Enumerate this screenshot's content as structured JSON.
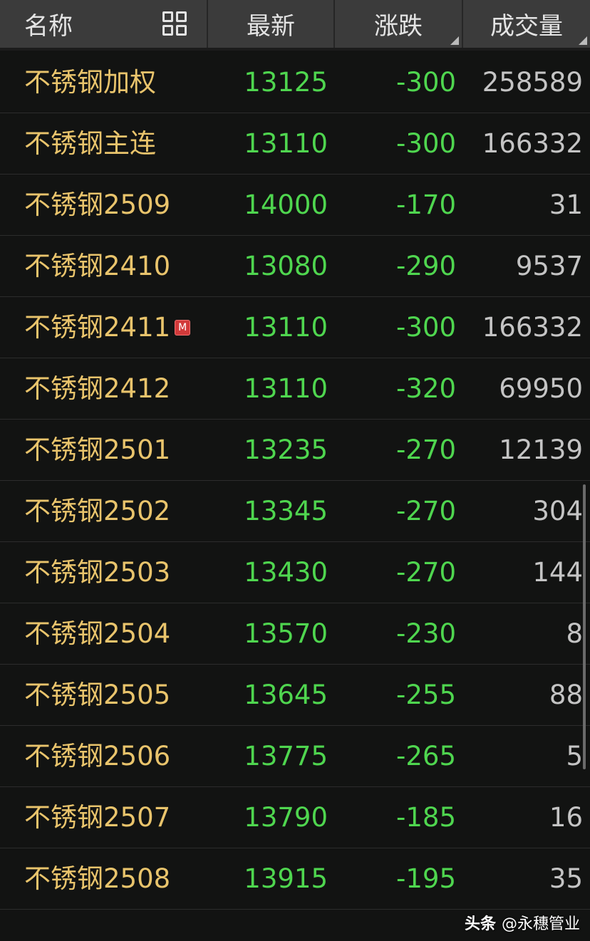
{
  "header": {
    "name": "名称",
    "latest": "最新",
    "change": "涨跌",
    "volume": "成交量"
  },
  "colors": {
    "name": "#e9c46c",
    "down": "#4fd64f",
    "volume": "#c4c4c4",
    "header_bg": "#3b3b3b",
    "bg": "#121312"
  },
  "rows": [
    {
      "name": "不锈钢加权",
      "latest": "13125",
      "change": "-300",
      "volume": "258589"
    },
    {
      "name": "不锈钢主连",
      "latest": "13110",
      "change": "-300",
      "volume": "166332"
    },
    {
      "name": "不锈钢2509",
      "latest": "14000",
      "change": "-170",
      "volume": "31"
    },
    {
      "name": "不锈钢2410",
      "latest": "13080",
      "change": "-290",
      "volume": "9537"
    },
    {
      "name": "不锈钢2411",
      "latest": "13110",
      "change": "-300",
      "volume": "166332",
      "badge": "M"
    },
    {
      "name": "不锈钢2412",
      "latest": "13110",
      "change": "-320",
      "volume": "69950"
    },
    {
      "name": "不锈钢2501",
      "latest": "13235",
      "change": "-270",
      "volume": "12139"
    },
    {
      "name": "不锈钢2502",
      "latest": "13345",
      "change": "-270",
      "volume": "304"
    },
    {
      "name": "不锈钢2503",
      "latest": "13430",
      "change": "-270",
      "volume": "144"
    },
    {
      "name": "不锈钢2504",
      "latest": "13570",
      "change": "-230",
      "volume": "8"
    },
    {
      "name": "不锈钢2505",
      "latest": "13645",
      "change": "-255",
      "volume": "88"
    },
    {
      "name": "不锈钢2506",
      "latest": "13775",
      "change": "-265",
      "volume": "5"
    },
    {
      "name": "不锈钢2507",
      "latest": "13790",
      "change": "-185",
      "volume": "16"
    },
    {
      "name": "不锈钢2508",
      "latest": "13915",
      "change": "-195",
      "volume": "35"
    }
  ],
  "watermark": {
    "brand": "头条",
    "handle": "@永穗管业"
  }
}
